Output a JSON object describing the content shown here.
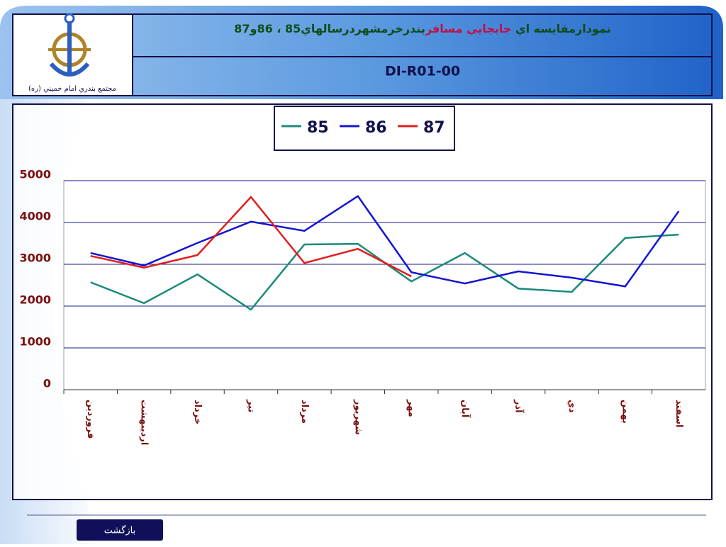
{
  "header": {
    "title_parts": [
      "نمودارمقايسه اي ",
      "جابجايي مسافر",
      "بندرخرمشهردرسالهاي85 ، 86و87"
    ],
    "code": "DI-R01-00",
    "logo_caption": "مجتمع بندري امام خميني (ره)"
  },
  "footer": {
    "button": "بازگشت"
  },
  "chart_data": {
    "type": "line",
    "categories": [
      "فروردين",
      "ارديبهشت",
      "خرداد",
      "تير",
      "مرداد",
      "شهريور",
      "مهر",
      "آبان",
      "آذر",
      "دي",
      "بهمن",
      "اسفند"
    ],
    "series": [
      {
        "name": "85",
        "color": "#1a8a7a",
        "values": [
          2570,
          2070,
          2760,
          1915,
          3475,
          3490,
          2590,
          3270,
          2420,
          2340,
          3630,
          3710
        ]
      },
      {
        "name": "86",
        "color": "#1414d2",
        "values": [
          3270,
          2970,
          3510,
          4020,
          3800,
          4630,
          2810,
          2540,
          2830,
          2680,
          2470,
          4270
        ]
      },
      {
        "name": "87",
        "color": "#e41c1c",
        "values": [
          3200,
          2920,
          3220,
          4610,
          3030,
          3370,
          2710,
          null,
          null,
          null,
          null,
          null
        ]
      }
    ],
    "ylim": [
      0,
      5000
    ],
    "yticks": [
      0,
      1000,
      2000,
      3000,
      4000,
      5000
    ],
    "grid": true,
    "legend": "top"
  }
}
